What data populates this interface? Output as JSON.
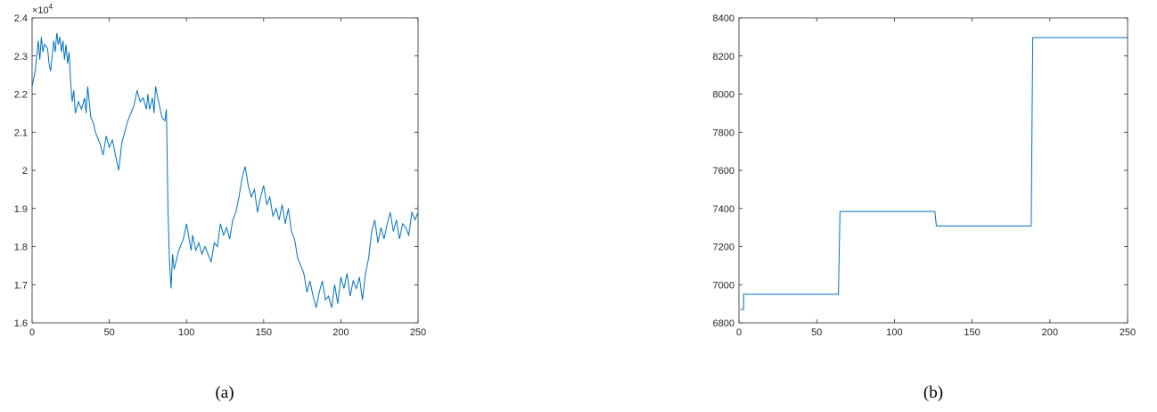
{
  "line_color": "#0072BD",
  "axis_color": "#262626",
  "chart_data": [
    {
      "type": "line",
      "caption": "(a)",
      "exponent_label": "×10",
      "exponent_power": "4",
      "xlim": [
        0,
        250
      ],
      "ylim": [
        16000,
        24000
      ],
      "xticks": [
        0,
        50,
        100,
        150,
        200,
        250
      ],
      "xtick_labels": [
        "0",
        "50",
        "100",
        "150",
        "200",
        "250"
      ],
      "yticks": [
        16000,
        17000,
        18000,
        19000,
        20000,
        21000,
        22000,
        23000,
        24000
      ],
      "ytick_labels": [
        "1.6",
        "1.7",
        "1.8",
        "1.9",
        "2",
        "2.1",
        "2.2",
        "2.3",
        "2.4"
      ],
      "grid": false,
      "x": [
        0,
        2,
        4,
        5,
        6,
        7,
        8,
        10,
        11,
        12,
        13,
        14,
        15,
        16,
        17,
        18,
        19,
        20,
        21,
        22,
        23,
        24,
        25,
        26,
        27,
        28,
        30,
        32,
        34,
        35,
        36,
        38,
        40,
        41,
        42,
        44,
        46,
        48,
        50,
        52,
        54,
        56,
        57,
        58,
        60,
        62,
        64,
        66,
        68,
        70,
        72,
        74,
        75,
        76,
        78,
        79,
        80,
        82,
        84,
        86,
        87,
        88,
        89,
        90,
        91,
        92,
        95,
        98,
        100,
        103,
        104,
        106,
        108,
        110,
        112,
        114,
        116,
        118,
        120,
        122,
        124,
        126,
        128,
        130,
        132,
        134,
        136,
        138,
        140,
        142,
        144,
        146,
        148,
        150,
        152,
        154,
        156,
        158,
        160,
        162,
        164,
        166,
        168,
        170,
        172,
        174,
        176,
        178,
        180,
        182,
        184,
        186,
        188,
        190,
        192,
        194,
        196,
        198,
        200,
        202,
        204,
        206,
        208,
        210,
        212,
        214,
        216,
        218,
        220,
        222,
        224,
        226,
        228,
        230,
        232,
        234,
        236,
        238,
        240,
        242,
        244,
        246,
        248,
        250
      ],
      "y": [
        22200,
        22600,
        23400,
        22900,
        23500,
        23100,
        23300,
        23200,
        22800,
        22600,
        23000,
        23400,
        23100,
        23600,
        23300,
        23500,
        23100,
        23400,
        22900,
        23300,
        22800,
        23100,
        22300,
        21800,
        22100,
        21500,
        21800,
        21600,
        21900,
        21500,
        22200,
        21400,
        21200,
        21000,
        20900,
        20700,
        20400,
        20900,
        20600,
        20800,
        20400,
        20000,
        20300,
        20700,
        21000,
        21300,
        21500,
        21700,
        22100,
        21800,
        21900,
        21600,
        22000,
        21600,
        21900,
        21500,
        22200,
        21800,
        21400,
        21300,
        21600,
        19000,
        17600,
        16900,
        17800,
        17400,
        17900,
        18200,
        18600,
        17900,
        18300,
        17900,
        18100,
        17800,
        18000,
        17800,
        17600,
        18100,
        18000,
        18600,
        18300,
        18500,
        18200,
        18700,
        18900,
        19300,
        19800,
        20100,
        19600,
        19300,
        19500,
        18900,
        19300,
        19600,
        19100,
        19300,
        18800,
        19000,
        18700,
        19100,
        18600,
        19000,
        18400,
        18200,
        17700,
        17500,
        17300,
        16800,
        17100,
        16700,
        16400,
        16800,
        17100,
        16600,
        16700,
        16400,
        17000,
        16500,
        17200,
        16900,
        17300,
        16700,
        17100,
        16900,
        17200,
        16600,
        17300,
        17700,
        18400,
        18700,
        18100,
        18500,
        18200,
        18600,
        18900,
        18400,
        18700,
        18200,
        18600,
        18500,
        18300,
        18900,
        18700,
        18900
      ]
    },
    {
      "type": "line",
      "caption": "(b)",
      "xlim": [
        0,
        250
      ],
      "ylim": [
        6800,
        8400
      ],
      "xticks": [
        0,
        50,
        100,
        150,
        200,
        250
      ],
      "xtick_labels": [
        "0",
        "50",
        "100",
        "150",
        "200",
        "250"
      ],
      "yticks": [
        6800,
        7000,
        7200,
        7400,
        7600,
        7800,
        8000,
        8200,
        8400
      ],
      "ytick_labels": [
        "6800",
        "7000",
        "7200",
        "7400",
        "7600",
        "7800",
        "8000",
        "8200",
        "8400"
      ],
      "grid": false,
      "x": [
        1,
        2,
        3,
        3,
        64,
        64,
        65,
        66,
        126,
        126,
        127,
        128,
        188,
        188,
        189,
        190,
        250
      ],
      "y": [
        6870,
        6870,
        6870,
        6950,
        6950,
        6950,
        7384,
        7384,
        7384,
        7384,
        7308,
        7308,
        7308,
        7308,
        8296,
        8296,
        8296
      ]
    }
  ]
}
